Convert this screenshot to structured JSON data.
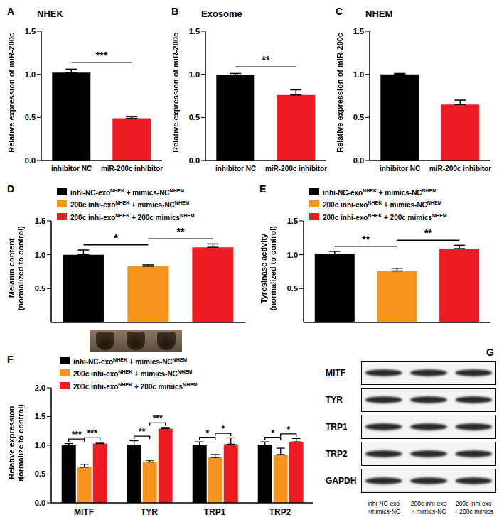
{
  "chart_data": [
    {
      "panel_label": "A",
      "type": "bar",
      "title": "NHEK",
      "y_label": [
        "Relative expression of miR-200c"
      ],
      "categories": [
        "inhibitor NC",
        "miR-200c inhibitor"
      ],
      "values": [
        1.02,
        0.49
      ],
      "errors": [
        0.04,
        0.02
      ],
      "colors": [
        "#000000",
        "#ed1c24"
      ],
      "ylim": [
        0,
        1.5
      ],
      "yticks": [
        {
          "value": 0,
          "label": "0.0"
        },
        {
          "value": 0.5,
          "label": "0.5"
        },
        {
          "value": 1,
          "label": "1.0"
        },
        {
          "value": 1.5,
          "label": "1.5"
        }
      ],
      "significance": [
        {
          "from": 0,
          "to": 1,
          "label": "***"
        }
      ]
    },
    {
      "panel_label": "B",
      "type": "bar",
      "title": "Exosome",
      "y_label": [
        "Relative expression of miR-200c"
      ],
      "categories": [
        "inhibitor NC",
        "miR-200c inhibitor"
      ],
      "values": [
        0.99,
        0.76
      ],
      "errors": [
        0.02,
        0.06
      ],
      "colors": [
        "#000000",
        "#ed1c24"
      ],
      "ylim": [
        0,
        1.5
      ],
      "yticks": [
        {
          "value": 0,
          "label": "0.0"
        },
        {
          "value": 0.5,
          "label": "0.5"
        },
        {
          "value": 1,
          "label": "1.0"
        },
        {
          "value": 1.5,
          "label": "1.5"
        }
      ],
      "significance": [
        {
          "from": 0,
          "to": 1,
          "label": "**"
        }
      ]
    },
    {
      "panel_label": "C",
      "type": "bar",
      "title": "NHEM",
      "y_label": [
        "Relative expression of miR-200c"
      ],
      "categories": [
        "inhibitor NC",
        "miR-200c inhibitor"
      ],
      "values": [
        1.0,
        0.65
      ],
      "errors": [
        0.01,
        0.05
      ],
      "colors": [
        "#000000",
        "#ed1c24"
      ],
      "ylim": [
        0,
        1.5
      ],
      "yticks": [
        {
          "value": 0,
          "label": "0.0"
        },
        {
          "value": 0.5,
          "label": "0.5"
        },
        {
          "value": 1,
          "label": "1.0"
        },
        {
          "value": 1.5,
          "label": "1.5"
        }
      ]
    },
    {
      "panel_label": "D",
      "type": "bar",
      "y_label": [
        "Melanin content",
        "(normalized to control)"
      ],
      "tick_labels": "y",
      "legend": "top-left",
      "ylim": [
        0,
        1.5
      ],
      "yticks": [
        {
          "value": 0,
          "label": "0.0"
        },
        {
          "value": 0.5,
          "label": "0.5"
        },
        {
          "value": 1,
          "label": "1.0"
        },
        {
          "value": 1.5,
          "label": "1.5"
        }
      ],
      "series": [
        {
          "name_parts": [
            {
              "text": "inhi-NC-exo"
            },
            {
              "text": "NHEK",
              "sup": true
            },
            {
              "text": " + mimics-NC"
            },
            {
              "text": "NHEM",
              "sup": true
            }
          ],
          "color": "#000000",
          "values": [
            1.0
          ],
          "errors": [
            0.07
          ]
        },
        {
          "name_parts": [
            {
              "text": "200c inhi-exo"
            },
            {
              "text": "NHEK",
              "sup": true
            },
            {
              "text": " + mimics-NC"
            },
            {
              "text": "NHEM",
              "sup": true
            }
          ],
          "color": "#f7941d",
          "values": [
            0.83
          ],
          "errors": [
            0.02
          ]
        },
        {
          "name_parts": [
            {
              "text": "200c inhi-exo"
            },
            {
              "text": "NHEK",
              "sup": true
            },
            {
              "text": " + 200c mimics"
            },
            {
              "text": "NHEM",
              "sup": true
            }
          ],
          "color": "#ed1c24",
          "values": [
            1.11
          ],
          "errors": [
            0.05
          ]
        }
      ],
      "significance": [
        {
          "from": 0,
          "to": 1,
          "label": "*"
        },
        {
          "from": 1,
          "to": 2,
          "label": "**"
        }
      ]
    },
    {
      "panel_label": "E",
      "type": "bar",
      "y_label": [
        "Tyrosinase activity",
        "(normalized to control)"
      ],
      "tick_labels": "y",
      "legend": "top-left",
      "ylim": [
        0,
        1.5
      ],
      "yticks": [
        {
          "value": 0,
          "label": "0.0"
        },
        {
          "value": 0.5,
          "label": "0.5"
        },
        {
          "value": 1,
          "label": "1.0"
        },
        {
          "value": 1.5,
          "label": "1.5"
        }
      ],
      "series": [
        {
          "name_parts": [
            {
              "text": "inhi-NC-exo"
            },
            {
              "text": "NHEK",
              "sup": true
            },
            {
              "text": " + mimics-NC"
            },
            {
              "text": "NHEM",
              "sup": true
            }
          ],
          "color": "#000000",
          "values": [
            1.01
          ],
          "errors": [
            0.04
          ]
        },
        {
          "name_parts": [
            {
              "text": "200c inhi-exo"
            },
            {
              "text": "NHEK",
              "sup": true
            },
            {
              "text": " + mimics-NC"
            },
            {
              "text": "NHEM",
              "sup": true
            }
          ],
          "color": "#f7941d",
          "values": [
            0.76
          ],
          "errors": [
            0.04
          ]
        },
        {
          "name_parts": [
            {
              "text": "200c inhi-exo"
            },
            {
              "text": "NHEK",
              "sup": true
            },
            {
              "text": " + 200c mimics"
            },
            {
              "text": "NHEM",
              "sup": true
            }
          ],
          "color": "#ed1c24",
          "values": [
            1.09
          ],
          "errors": [
            0.05
          ]
        }
      ],
      "significance": [
        {
          "from": 0,
          "to": 1,
          "label": "**"
        },
        {
          "from": 1,
          "to": 2,
          "label": "**"
        }
      ]
    },
    {
      "panel_label": "F",
      "type": "bar",
      "y_label": [
        "Relative expression",
        "（normalize to control)"
      ],
      "legend": "top-left",
      "categories": [
        "MITF",
        "TYR",
        "TRP1",
        "TRP2"
      ],
      "ylim": [
        0,
        2
      ],
      "yticks": [
        {
          "value": 0,
          "label": "0.0"
        },
        {
          "value": 0.5,
          "label": "0.5"
        },
        {
          "value": 1,
          "label": "1.0"
        },
        {
          "value": 1.5,
          "label": "1.5"
        },
        {
          "value": 2,
          "label": "2.0"
        }
      ],
      "series": [
        {
          "name_parts": [
            {
              "text": "inhi-NC-exo"
            },
            {
              "text": "NHEK",
              "sup": true
            },
            {
              "text": " + mimics-NC"
            },
            {
              "text": "NHEM",
              "sup": true
            }
          ],
          "color": "#000000",
          "values": [
            1.0,
            1.0,
            1.0,
            1.0
          ],
          "errors": [
            0.03,
            0.08,
            0.06,
            0.06
          ]
        },
        {
          "name_parts": [
            {
              "text": "200c inhi-exo"
            },
            {
              "text": "NHEK",
              "sup": true
            },
            {
              "text": " + mimics-NC"
            },
            {
              "text": "NHEM",
              "sup": true
            }
          ],
          "color": "#f7941d",
          "values": [
            0.62,
            0.71,
            0.79,
            0.84
          ],
          "errors": [
            0.05,
            0.03,
            0.05,
            0.11
          ]
        },
        {
          "name_parts": [
            {
              "text": "200c inhi-exo"
            },
            {
              "text": "NHEK",
              "sup": true
            },
            {
              "text": " + 200c mimics"
            },
            {
              "text": "NHEM",
              "sup": true
            }
          ],
          "color": "#ed1c24",
          "values": [
            1.03,
            1.29,
            1.02,
            1.06
          ],
          "errors": [
            0.02,
            0.02,
            0.11,
            0.06
          ]
        }
      ],
      "significance": [
        [
          {
            "from": 0,
            "to": 1,
            "label": "***"
          },
          {
            "from": 1,
            "to": 2,
            "label": "***"
          }
        ],
        [
          {
            "from": 0,
            "to": 1,
            "label": "**"
          },
          {
            "from": 1,
            "to": 2,
            "label": "***"
          }
        ],
        [
          {
            "from": 0,
            "to": 1,
            "label": "*"
          },
          {
            "from": 1,
            "to": 2,
            "label": "*"
          }
        ],
        [
          {
            "from": 0,
            "to": 1,
            "label": "*"
          },
          {
            "from": 1,
            "to": 2,
            "label": "*"
          }
        ]
      ]
    }
  ],
  "blot": {
    "panel_label": "G",
    "rows": [
      "MITF",
      "TYR",
      "TRP1",
      "TRP2",
      "GAPDH"
    ],
    "lanes": [
      [
        "inhi-NC-exo",
        "+mimics-NC"
      ],
      [
        "200c inhi-exo",
        "+ mimics-NC"
      ],
      [
        "200c inhi-exo",
        "+ 200c mimics"
      ]
    ]
  }
}
